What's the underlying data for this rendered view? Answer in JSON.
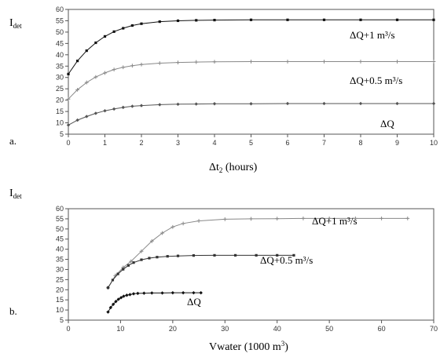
{
  "chart_data": [
    {
      "type": "line",
      "panel_label": "a.",
      "ylabel": "I",
      "ylabel_sub": "det",
      "xlabel_prefix": "Δt",
      "xlabel_sub": "2",
      "xlabel_suffix": " (hours)",
      "xlim": [
        0,
        10
      ],
      "ylim": [
        5,
        60
      ],
      "xticks": [
        0,
        1,
        2,
        3,
        4,
        5,
        6,
        7,
        8,
        9,
        10
      ],
      "yticks": [
        5,
        10,
        15,
        20,
        25,
        30,
        35,
        40,
        45,
        50,
        55,
        60
      ],
      "grid": false,
      "series": [
        {
          "name": "ΔQ+1 m³/s",
          "marker": "square",
          "color": "#111111",
          "x": [
            0,
            0.25,
            0.5,
            0.75,
            1,
            1.25,
            1.5,
            1.75,
            2,
            2.5,
            3,
            3.5,
            4,
            5,
            6,
            7,
            8,
            9,
            10
          ],
          "y": [
            31.5,
            37.3,
            41.8,
            45.3,
            48.1,
            50.2,
            51.7,
            52.9,
            53.7,
            54.6,
            55.0,
            55.2,
            55.3,
            55.4,
            55.4,
            55.4,
            55.4,
            55.4,
            55.4
          ]
        },
        {
          "name": "ΔQ+0.5 m³/s",
          "marker": "plus",
          "color": "#888888",
          "x": [
            0,
            0.25,
            0.5,
            0.75,
            1,
            1.25,
            1.5,
            1.75,
            2,
            2.5,
            3,
            3.5,
            4,
            5,
            6,
            7,
            8,
            9,
            10
          ],
          "y": [
            20.5,
            24.6,
            27.8,
            30.2,
            32.0,
            33.5,
            34.5,
            35.2,
            35.7,
            36.3,
            36.6,
            36.8,
            36.9,
            37.0,
            37.0,
            37.0,
            37.0,
            37.0,
            37.0
          ]
        },
        {
          "name": "ΔQ",
          "marker": "diamond",
          "color": "#555555",
          "x": [
            0,
            0.25,
            0.5,
            0.75,
            1,
            1.25,
            1.5,
            1.75,
            2,
            2.5,
            3,
            3.5,
            4,
            5,
            6,
            7,
            8,
            9,
            10
          ],
          "y": [
            9.0,
            11.2,
            12.8,
            14.2,
            15.3,
            16.1,
            16.8,
            17.3,
            17.6,
            18.0,
            18.2,
            18.3,
            18.4,
            18.4,
            18.5,
            18.5,
            18.5,
            18.5,
            18.5
          ]
        }
      ]
    },
    {
      "type": "line",
      "panel_label": "b.",
      "ylabel": "I",
      "ylabel_sub": "det",
      "xlabel_prefix": "Vwater (1000 m",
      "xlabel_sup": "3",
      "xlabel_suffix": ")",
      "xlim": [
        0,
        70
      ],
      "ylim": [
        5,
        60
      ],
      "xticks": [
        0,
        10,
        20,
        30,
        40,
        50,
        60,
        70
      ],
      "yticks": [
        5,
        10,
        15,
        20,
        25,
        30,
        35,
        40,
        45,
        50,
        55,
        60
      ],
      "grid": false,
      "series": [
        {
          "name": "ΔQ+1 m³/s",
          "marker": "plus",
          "color": "#888888",
          "x": [
            7.6,
            9,
            10.5,
            12,
            14,
            16,
            18,
            20,
            22,
            25,
            30,
            35,
            40,
            45,
            50,
            55,
            60,
            65
          ],
          "y": [
            21,
            27,
            31,
            34,
            39,
            44,
            48,
            51,
            52.7,
            54,
            54.8,
            55.0,
            55.1,
            55.2,
            55.2,
            55.2,
            55.2,
            55.2
          ]
        },
        {
          "name": "ΔQ+0.5 m³/s",
          "marker": "square",
          "color": "#333333",
          "x": [
            7.6,
            8.5,
            9.5,
            10.5,
            11.5,
            12.5,
            14,
            15.5,
            17,
            19,
            21,
            24,
            28,
            32,
            36,
            40,
            43.2
          ],
          "y": [
            21,
            24.8,
            27.8,
            30.1,
            32.0,
            33.4,
            34.8,
            35.6,
            36.1,
            36.5,
            36.7,
            36.9,
            37.0,
            37.0,
            37.0,
            37.0,
            37.0
          ]
        },
        {
          "name": "ΔQ",
          "marker": "diamond",
          "color": "#111111",
          "x": [
            7.6,
            8.1,
            8.6,
            9.1,
            9.6,
            10.1,
            10.6,
            11.2,
            11.8,
            12.5,
            13.3,
            14.5,
            16,
            18,
            20,
            22,
            24,
            25.4
          ],
          "y": [
            9.0,
            11.2,
            12.8,
            14.2,
            15.3,
            16.1,
            16.8,
            17.3,
            17.6,
            18.0,
            18.2,
            18.3,
            18.4,
            18.4,
            18.5,
            18.5,
            18.5,
            18.5
          ]
        }
      ]
    }
  ]
}
